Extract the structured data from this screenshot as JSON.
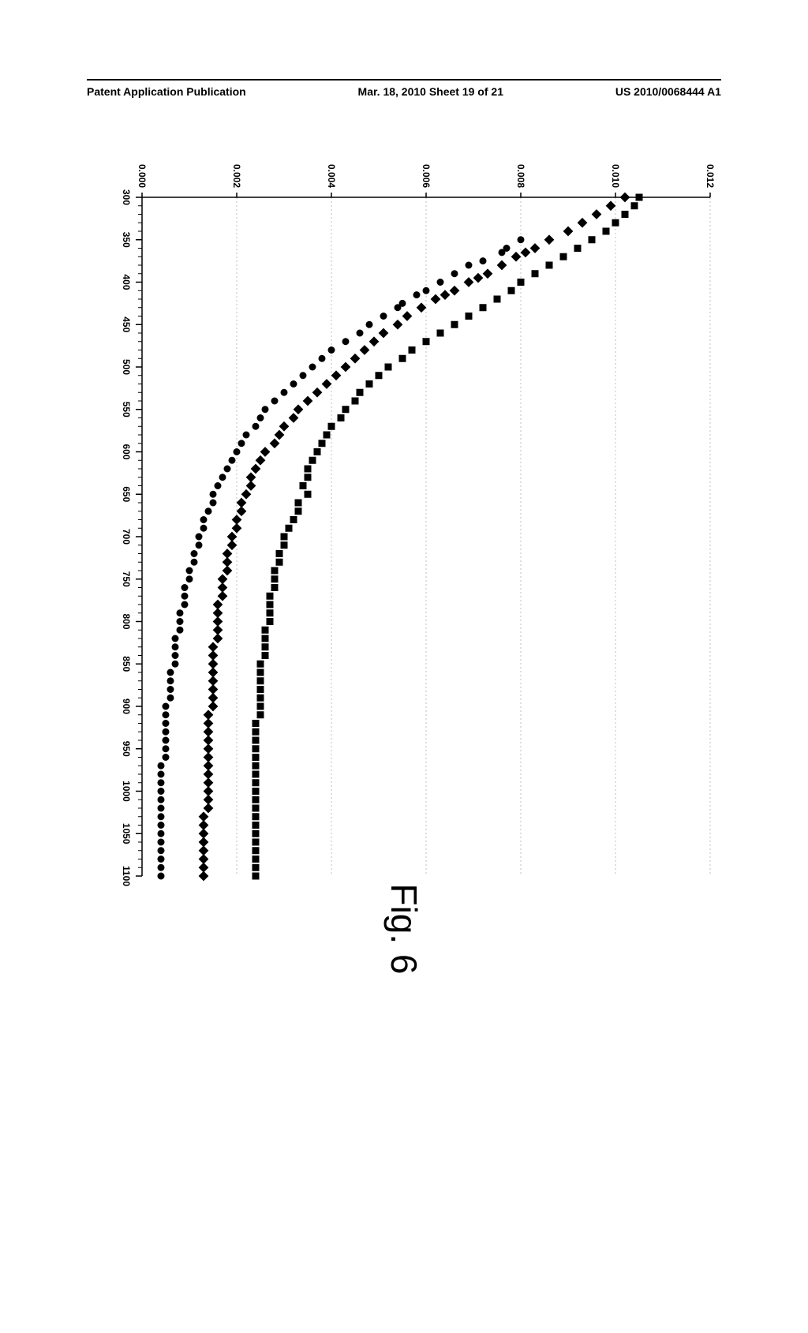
{
  "header": {
    "left": "Patent Application Publication",
    "center": "Mar. 18, 2010  Sheet 19 of 21",
    "right": "US 2010/0068444 A1"
  },
  "figure_label": "Fig. 6",
  "chart": {
    "type": "scatter",
    "background_color": "#ffffff",
    "grid_color": "#bfbfbf",
    "axis_color": "#000000",
    "x": {
      "min": 300,
      "max": 1100,
      "tick_step": 50,
      "minor_tick_step": 10,
      "ticks": [
        300,
        350,
        400,
        450,
        500,
        550,
        600,
        650,
        700,
        750,
        800,
        850,
        900,
        950,
        1000,
        1050,
        1100
      ],
      "label_fontsize": 12
    },
    "y": {
      "min": 0.0,
      "max": 0.012,
      "tick_step": 0.002,
      "ticks": [
        "0.000",
        "0.002",
        "0.004",
        "0.006",
        "0.008",
        "0.010",
        "0.012"
      ],
      "label_fontsize": 12
    },
    "series": [
      {
        "name": "squares",
        "marker": "square",
        "marker_size": 9,
        "color": "#000000",
        "data": [
          [
            300,
            0.0105
          ],
          [
            310,
            0.0104
          ],
          [
            320,
            0.0102
          ],
          [
            330,
            0.01
          ],
          [
            340,
            0.0098
          ],
          [
            350,
            0.0095
          ],
          [
            360,
            0.0092
          ],
          [
            370,
            0.0089
          ],
          [
            380,
            0.0086
          ],
          [
            390,
            0.0083
          ],
          [
            400,
            0.008
          ],
          [
            410,
            0.0078
          ],
          [
            420,
            0.0075
          ],
          [
            430,
            0.0072
          ],
          [
            440,
            0.0069
          ],
          [
            450,
            0.0066
          ],
          [
            460,
            0.0063
          ],
          [
            470,
            0.006
          ],
          [
            480,
            0.0057
          ],
          [
            490,
            0.0055
          ],
          [
            500,
            0.0052
          ],
          [
            510,
            0.005
          ],
          [
            520,
            0.0048
          ],
          [
            530,
            0.0046
          ],
          [
            540,
            0.0045
          ],
          [
            550,
            0.0043
          ],
          [
            560,
            0.0042
          ],
          [
            570,
            0.004
          ],
          [
            580,
            0.0039
          ],
          [
            590,
            0.0038
          ],
          [
            600,
            0.0037
          ],
          [
            610,
            0.0036
          ],
          [
            620,
            0.0035
          ],
          [
            630,
            0.0035
          ],
          [
            640,
            0.0034
          ],
          [
            650,
            0.0035
          ],
          [
            660,
            0.0033
          ],
          [
            670,
            0.0033
          ],
          [
            680,
            0.0032
          ],
          [
            690,
            0.0031
          ],
          [
            700,
            0.003
          ],
          [
            710,
            0.003
          ],
          [
            720,
            0.0029
          ],
          [
            730,
            0.0029
          ],
          [
            740,
            0.0028
          ],
          [
            750,
            0.0028
          ],
          [
            760,
            0.0028
          ],
          [
            770,
            0.0027
          ],
          [
            780,
            0.0027
          ],
          [
            790,
            0.0027
          ],
          [
            800,
            0.0027
          ],
          [
            810,
            0.0026
          ],
          [
            820,
            0.0026
          ],
          [
            830,
            0.0026
          ],
          [
            840,
            0.0026
          ],
          [
            850,
            0.0025
          ],
          [
            860,
            0.0025
          ],
          [
            870,
            0.0025
          ],
          [
            880,
            0.0025
          ],
          [
            890,
            0.0025
          ],
          [
            900,
            0.0025
          ],
          [
            910,
            0.0025
          ],
          [
            920,
            0.0024
          ],
          [
            930,
            0.0024
          ],
          [
            940,
            0.0024
          ],
          [
            950,
            0.0024
          ],
          [
            960,
            0.0024
          ],
          [
            970,
            0.0024
          ],
          [
            980,
            0.0024
          ],
          [
            990,
            0.0024
          ],
          [
            1000,
            0.0024
          ],
          [
            1010,
            0.0024
          ],
          [
            1020,
            0.0024
          ],
          [
            1030,
            0.0024
          ],
          [
            1040,
            0.0024
          ],
          [
            1050,
            0.0024
          ],
          [
            1060,
            0.0024
          ],
          [
            1070,
            0.0024
          ],
          [
            1080,
            0.0024
          ],
          [
            1090,
            0.0024
          ],
          [
            1100,
            0.0024
          ]
        ]
      },
      {
        "name": "diamonds",
        "marker": "diamond",
        "marker_size": 9,
        "color": "#000000",
        "data": [
          [
            300,
            0.0102
          ],
          [
            310,
            0.0099
          ],
          [
            320,
            0.0096
          ],
          [
            330,
            0.0093
          ],
          [
            340,
            0.009
          ],
          [
            350,
            0.0086
          ],
          [
            360,
            0.0083
          ],
          [
            365,
            0.0081
          ],
          [
            370,
            0.0079
          ],
          [
            380,
            0.0076
          ],
          [
            390,
            0.0073
          ],
          [
            395,
            0.0071
          ],
          [
            400,
            0.0069
          ],
          [
            410,
            0.0066
          ],
          [
            415,
            0.0064
          ],
          [
            420,
            0.0062
          ],
          [
            430,
            0.0059
          ],
          [
            440,
            0.0056
          ],
          [
            450,
            0.0054
          ],
          [
            460,
            0.0051
          ],
          [
            470,
            0.0049
          ],
          [
            480,
            0.0047
          ],
          [
            490,
            0.0045
          ],
          [
            500,
            0.0043
          ],
          [
            510,
            0.0041
          ],
          [
            520,
            0.0039
          ],
          [
            530,
            0.0037
          ],
          [
            540,
            0.0035
          ],
          [
            550,
            0.0033
          ],
          [
            560,
            0.0032
          ],
          [
            570,
            0.003
          ],
          [
            580,
            0.0029
          ],
          [
            590,
            0.0028
          ],
          [
            600,
            0.0026
          ],
          [
            610,
            0.0025
          ],
          [
            620,
            0.0024
          ],
          [
            630,
            0.0023
          ],
          [
            640,
            0.0023
          ],
          [
            650,
            0.0022
          ],
          [
            660,
            0.0021
          ],
          [
            670,
            0.0021
          ],
          [
            680,
            0.002
          ],
          [
            690,
            0.002
          ],
          [
            700,
            0.0019
          ],
          [
            710,
            0.0019
          ],
          [
            720,
            0.0018
          ],
          [
            730,
            0.0018
          ],
          [
            740,
            0.0018
          ],
          [
            750,
            0.0017
          ],
          [
            760,
            0.0017
          ],
          [
            770,
            0.0017
          ],
          [
            780,
            0.0016
          ],
          [
            790,
            0.0016
          ],
          [
            800,
            0.0016
          ],
          [
            810,
            0.0016
          ],
          [
            820,
            0.0016
          ],
          [
            830,
            0.0015
          ],
          [
            840,
            0.0015
          ],
          [
            850,
            0.0015
          ],
          [
            860,
            0.0015
          ],
          [
            870,
            0.0015
          ],
          [
            880,
            0.0015
          ],
          [
            890,
            0.0015
          ],
          [
            900,
            0.0015
          ],
          [
            910,
            0.0014
          ],
          [
            920,
            0.0014
          ],
          [
            930,
            0.0014
          ],
          [
            940,
            0.0014
          ],
          [
            950,
            0.0014
          ],
          [
            960,
            0.0014
          ],
          [
            970,
            0.0014
          ],
          [
            980,
            0.0014
          ],
          [
            990,
            0.0014
          ],
          [
            1000,
            0.0014
          ],
          [
            1010,
            0.0014
          ],
          [
            1020,
            0.0014
          ],
          [
            1030,
            0.0013
          ],
          [
            1040,
            0.0013
          ],
          [
            1050,
            0.0013
          ],
          [
            1060,
            0.0013
          ],
          [
            1070,
            0.0013
          ],
          [
            1080,
            0.0013
          ],
          [
            1090,
            0.0013
          ],
          [
            1100,
            0.0013
          ]
        ]
      },
      {
        "name": "circles",
        "marker": "circle",
        "marker_size": 9,
        "color": "#000000",
        "data": [
          [
            350,
            0.008
          ],
          [
            360,
            0.0077
          ],
          [
            365,
            0.0076
          ],
          [
            375,
            0.0072
          ],
          [
            380,
            0.0069
          ],
          [
            390,
            0.0066
          ],
          [
            400,
            0.0063
          ],
          [
            410,
            0.006
          ],
          [
            415,
            0.0058
          ],
          [
            425,
            0.0055
          ],
          [
            430,
            0.0054
          ],
          [
            440,
            0.0051
          ],
          [
            450,
            0.0048
          ],
          [
            460,
            0.0046
          ],
          [
            470,
            0.0043
          ],
          [
            480,
            0.004
          ],
          [
            490,
            0.0038
          ],
          [
            500,
            0.0036
          ],
          [
            510,
            0.0034
          ],
          [
            520,
            0.0032
          ],
          [
            530,
            0.003
          ],
          [
            540,
            0.0028
          ],
          [
            550,
            0.0026
          ],
          [
            560,
            0.0025
          ],
          [
            570,
            0.0024
          ],
          [
            580,
            0.0022
          ],
          [
            590,
            0.0021
          ],
          [
            600,
            0.002
          ],
          [
            610,
            0.0019
          ],
          [
            620,
            0.0018
          ],
          [
            630,
            0.0017
          ],
          [
            640,
            0.0016
          ],
          [
            650,
            0.0015
          ],
          [
            660,
            0.0015
          ],
          [
            670,
            0.0014
          ],
          [
            680,
            0.0013
          ],
          [
            690,
            0.0013
          ],
          [
            700,
            0.0012
          ],
          [
            710,
            0.0012
          ],
          [
            720,
            0.0011
          ],
          [
            730,
            0.0011
          ],
          [
            740,
            0.001
          ],
          [
            750,
            0.001
          ],
          [
            760,
            0.0009
          ],
          [
            770,
            0.0009
          ],
          [
            780,
            0.0009
          ],
          [
            790,
            0.0008
          ],
          [
            800,
            0.0008
          ],
          [
            810,
            0.0008
          ],
          [
            820,
            0.0007
          ],
          [
            830,
            0.0007
          ],
          [
            840,
            0.0007
          ],
          [
            850,
            0.0007
          ],
          [
            860,
            0.0006
          ],
          [
            870,
            0.0006
          ],
          [
            880,
            0.0006
          ],
          [
            890,
            0.0006
          ],
          [
            900,
            0.0005
          ],
          [
            910,
            0.0005
          ],
          [
            920,
            0.0005
          ],
          [
            930,
            0.0005
          ],
          [
            940,
            0.0005
          ],
          [
            950,
            0.0005
          ],
          [
            960,
            0.0005
          ],
          [
            970,
            0.0004
          ],
          [
            980,
            0.0004
          ],
          [
            990,
            0.0004
          ],
          [
            1000,
            0.0004
          ],
          [
            1010,
            0.0004
          ],
          [
            1020,
            0.0004
          ],
          [
            1030,
            0.0004
          ],
          [
            1040,
            0.0004
          ],
          [
            1050,
            0.0004
          ],
          [
            1060,
            0.0004
          ],
          [
            1070,
            0.0004
          ],
          [
            1080,
            0.0004
          ],
          [
            1090,
            0.0004
          ],
          [
            1100,
            0.0004
          ]
        ]
      }
    ]
  }
}
